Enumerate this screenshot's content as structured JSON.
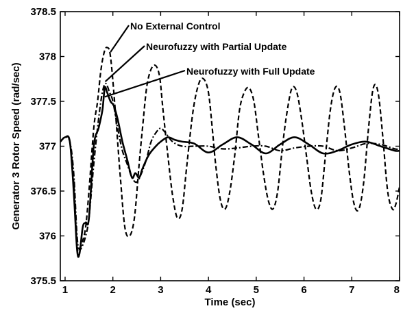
{
  "chart_data": {
    "type": "line",
    "title": "",
    "xlabel": "Time (sec)",
    "ylabel": "Generator 3 Rotor Speed (rad/sec)",
    "xlim": [
      0.9,
      8
    ],
    "ylim": [
      375.5,
      378.5
    ],
    "xticks": [
      "1",
      "2",
      "3",
      "4",
      "5",
      "6",
      "7",
      "8"
    ],
    "yticks": [
      "375.5",
      "376",
      "376.5",
      "377",
      "377.5",
      "378",
      "378.5"
    ],
    "grid": false,
    "legend": "none",
    "annotations": [
      {
        "text": "No External Control",
        "series": "No External Control",
        "x": 1.95,
        "y": 378.05
      },
      {
        "text": "Neurofuzzy with Partial Update",
        "series": "Neurofuzzy with Partial Update",
        "x": 1.84,
        "y": 377.72
      },
      {
        "text": "Neurofuzzy with Full Update",
        "series": "Neurofuzzy with Full Update",
        "x": 1.83,
        "y": 377.55
      }
    ],
    "series": [
      {
        "name": "No External Control",
        "style": "dashed",
        "color": "#000000",
        "x": [
          0.9,
          1.0,
          1.1,
          1.18,
          1.25,
          1.3,
          1.37,
          1.43,
          1.5,
          1.6,
          1.68,
          1.75,
          1.82,
          1.88,
          1.95,
          2.05,
          2.15,
          2.25,
          2.35,
          2.45,
          2.55,
          2.62,
          2.72,
          2.85,
          2.97,
          3.05,
          3.15,
          3.25,
          3.35,
          3.45,
          3.55,
          3.68,
          3.8,
          3.9,
          4.0,
          4.08,
          4.15,
          4.25,
          4.35,
          4.45,
          4.55,
          4.65,
          4.75,
          4.85,
          4.95,
          5.05,
          5.15,
          5.25,
          5.35,
          5.45,
          5.55,
          5.65,
          5.75,
          5.85,
          5.95,
          6.05,
          6.15,
          6.25,
          6.35,
          6.45,
          6.55,
          6.65,
          6.75,
          6.85,
          6.95,
          7.05,
          7.15,
          7.25,
          7.35,
          7.45,
          7.55,
          7.65,
          7.75,
          7.85,
          7.92,
          8.0
        ],
        "y": [
          377.05,
          377.1,
          377.05,
          376.6,
          375.9,
          375.85,
          375.95,
          376.1,
          376.5,
          377.2,
          377.5,
          377.85,
          378.05,
          378.1,
          378.0,
          377.4,
          376.7,
          376.1,
          376.0,
          376.2,
          376.8,
          377.2,
          377.7,
          377.9,
          377.8,
          377.4,
          376.9,
          376.45,
          376.2,
          376.3,
          376.8,
          377.4,
          377.7,
          377.75,
          377.6,
          377.2,
          376.8,
          376.4,
          376.3,
          376.5,
          376.9,
          377.4,
          377.6,
          377.65,
          377.5,
          377.1,
          376.7,
          376.4,
          376.3,
          376.5,
          377.0,
          377.4,
          377.65,
          377.6,
          377.3,
          376.9,
          376.5,
          376.3,
          376.4,
          376.9,
          377.4,
          377.65,
          377.6,
          377.2,
          376.7,
          376.35,
          376.3,
          376.6,
          377.2,
          377.65,
          377.6,
          377.1,
          376.5,
          376.3,
          376.35,
          376.55
        ]
      },
      {
        "name": "Neurofuzzy with Partial Update",
        "style": "dash-dot",
        "color": "#000000",
        "x": [
          0.9,
          1.0,
          1.1,
          1.18,
          1.25,
          1.3,
          1.37,
          1.43,
          1.5,
          1.6,
          1.7,
          1.78,
          1.85,
          1.93,
          2.0,
          2.1,
          2.2,
          2.3,
          2.4,
          2.5,
          2.6,
          2.7,
          2.8,
          2.9,
          3.0,
          3.1,
          3.25,
          3.45,
          3.7,
          4.0,
          4.3,
          4.6,
          4.9,
          5.2,
          5.5,
          5.8,
          6.1,
          6.4,
          6.7,
          7.0,
          7.3,
          7.6,
          7.9,
          8.0
        ],
        "y": [
          377.05,
          377.1,
          377.05,
          376.7,
          376.0,
          375.85,
          375.9,
          376.0,
          376.2,
          376.8,
          377.3,
          377.6,
          377.7,
          377.6,
          377.5,
          377.2,
          376.95,
          376.8,
          376.65,
          376.6,
          376.7,
          376.85,
          377.05,
          377.15,
          377.2,
          377.15,
          377.05,
          377.0,
          377.0,
          377.0,
          376.97,
          376.98,
          377.0,
          377.0,
          376.95,
          376.98,
          377.0,
          377.0,
          376.95,
          376.98,
          377.03,
          377.02,
          376.97,
          376.97
        ]
      },
      {
        "name": "Neurofuzzy with Full Update",
        "style": "solid",
        "color": "#000000",
        "x": [
          0.9,
          1.0,
          1.1,
          1.18,
          1.25,
          1.3,
          1.37,
          1.43,
          1.5,
          1.6,
          1.7,
          1.78,
          1.83,
          1.88,
          1.95,
          2.02,
          2.1,
          2.2,
          2.3,
          2.4,
          2.47,
          2.55,
          2.62,
          2.75,
          2.9,
          3.0,
          3.15,
          3.3,
          3.45,
          3.7,
          4.0,
          4.3,
          4.6,
          4.9,
          5.2,
          5.5,
          5.8,
          6.1,
          6.4,
          6.7,
          7.0,
          7.3,
          7.6,
          7.9,
          8.0
        ],
        "y": [
          377.05,
          377.1,
          377.05,
          376.5,
          375.85,
          375.8,
          376.1,
          376.15,
          376.2,
          377.0,
          377.2,
          377.4,
          377.65,
          377.6,
          377.5,
          377.45,
          377.3,
          377.05,
          376.85,
          376.65,
          376.7,
          376.65,
          376.75,
          376.9,
          377.0,
          377.05,
          377.1,
          377.07,
          377.05,
          377.03,
          376.93,
          377.02,
          377.1,
          377.02,
          376.92,
          377.02,
          377.1,
          377.02,
          376.92,
          376.95,
          377.02,
          377.05,
          377.0,
          376.95,
          376.95
        ]
      }
    ]
  }
}
